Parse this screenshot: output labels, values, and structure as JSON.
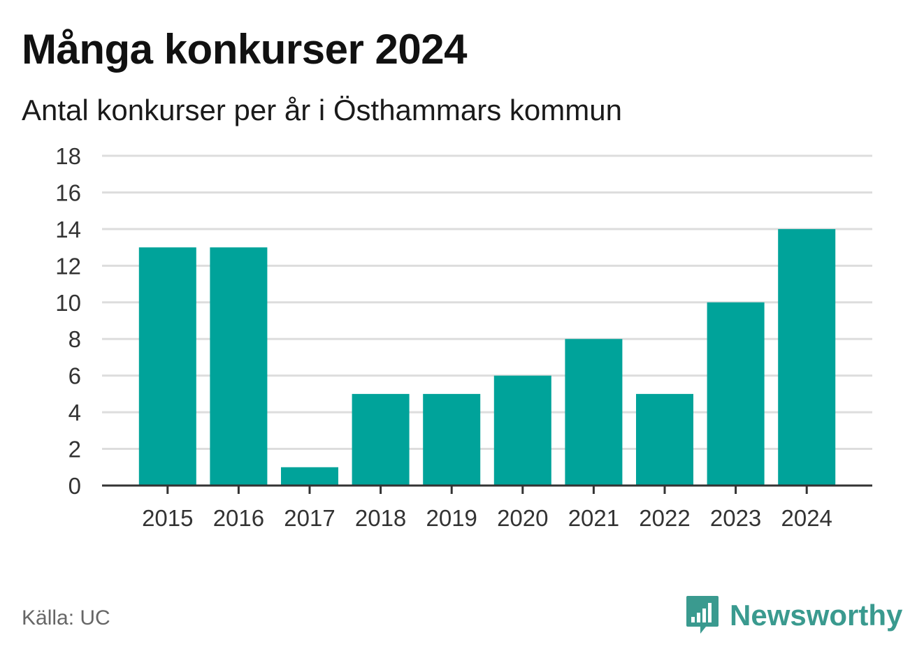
{
  "header": {
    "title": "Många konkurser 2024",
    "subtitle": "Antal konkurser per år i Östhammars kommun"
  },
  "footer": {
    "source_label": "Källa:",
    "source_value": "UC",
    "brand_name": "Newsworthy",
    "brand_icon": "bar-chart-speech-bubble-icon"
  },
  "colors": {
    "bar": "#00a39a",
    "grid": "#dddddd",
    "axis": "#333333",
    "brand": "#3a9a8f"
  },
  "chart_data": {
    "type": "bar",
    "title": "Många konkurser 2024",
    "subtitle": "Antal konkurser per år i Östhammars kommun",
    "categories": [
      "2015",
      "2016",
      "2017",
      "2018",
      "2019",
      "2020",
      "2021",
      "2022",
      "2023",
      "2024"
    ],
    "values": [
      13,
      13,
      1,
      5,
      5,
      6,
      8,
      5,
      10,
      14
    ],
    "xlabel": "",
    "ylabel": "",
    "ylim": [
      0,
      18
    ],
    "yticks": [
      0,
      2,
      4,
      6,
      8,
      10,
      12,
      14,
      16,
      18
    ],
    "grid": true,
    "legend": "none"
  }
}
